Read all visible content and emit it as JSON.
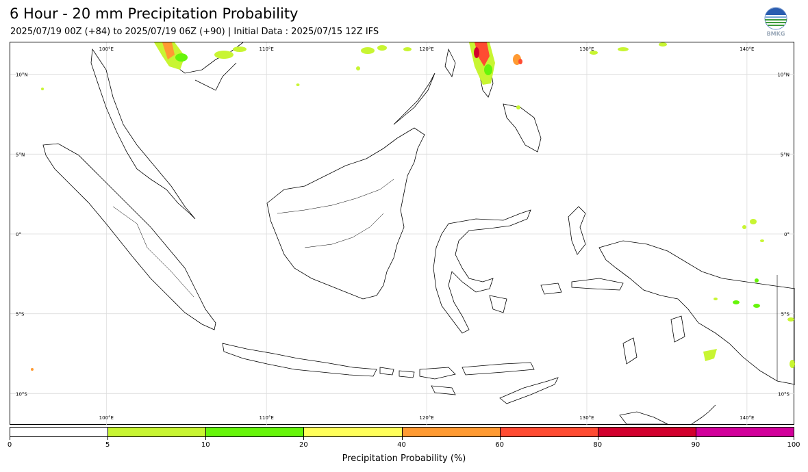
{
  "header": {
    "title": "6 Hour - 20 mm Precipitation Probability",
    "subtitle": "2025/07/19 00Z (+84) to 2025/07/19 06Z (+90) | Initial Data : 2025/07/15 12Z IFS",
    "logo_text": "BMKG"
  },
  "map": {
    "lon_range": [
      94,
      143
    ],
    "lat_range": [
      -12,
      12
    ],
    "grid": true,
    "lon_labels": [
      "100°E",
      "110°E",
      "120°E",
      "130°E",
      "140°E"
    ],
    "lon_values": [
      100,
      110,
      120,
      130,
      140
    ],
    "lat_labels": [
      "10°N",
      "5°N",
      "0°",
      "5°S",
      "10°S"
    ],
    "lat_values": [
      10,
      5,
      0,
      -5,
      -10
    ]
  },
  "colorbar": {
    "title": "Precipitation Probability (%)",
    "ticks": [
      "0",
      "5",
      "10",
      "20",
      "40",
      "60",
      "80",
      "90",
      "100"
    ],
    "colors": [
      "#ffffff",
      "#c8f532",
      "#66f50a",
      "#ffff5a",
      "#ff9a32",
      "#ff4b32",
      "#d2002d",
      "#d2009b"
    ]
  }
}
